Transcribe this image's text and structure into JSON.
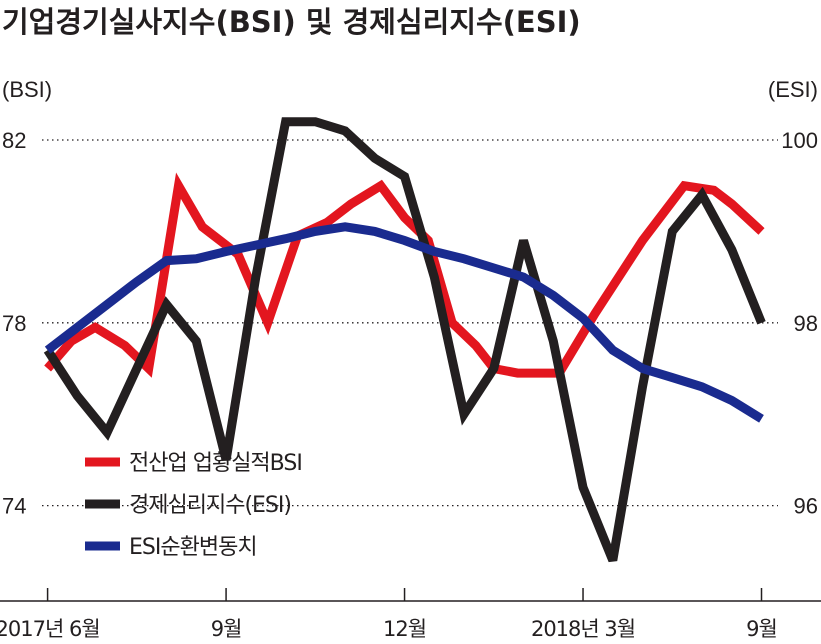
{
  "chart_data": {
    "type": "line",
    "title": "기업경기실사지수(BSI) 및 경제심리지수(ESI)",
    "left_axis": {
      "unit_label": "(BSI)",
      "ticks": [
        82,
        78,
        74
      ],
      "range": [
        72,
        82
      ]
    },
    "right_axis": {
      "unit_label": "(ESI)",
      "ticks": [
        100,
        98,
        96
      ],
      "range": [
        95,
        100
      ]
    },
    "x_tick_labels": [
      "2017년 6월",
      "9월",
      "12월",
      "2018년 3월",
      "9월"
    ],
    "x_tick_positions": [
      6,
      9,
      12,
      15,
      18
    ],
    "x_range": [
      5.2,
      19
    ],
    "grid": "horizontal dotted",
    "legend_placement": "bottom-left",
    "series": [
      {
        "name": "전산업 업황실적BSI",
        "axis": "left",
        "color": "#e3161f",
        "x": [
          6,
          6.4,
          6.8,
          7.3,
          7.7,
          8.2,
          8.6,
          9.2,
          9.7,
          10.2,
          10.7,
          11.1,
          11.6,
          12,
          12.4,
          12.8,
          13.2,
          13.5,
          13.9,
          14.3,
          14.6,
          15.2,
          16,
          16.7,
          17.2,
          17.5,
          18
        ],
        "y": [
          77,
          77.6,
          77.9,
          77.5,
          77,
          81,
          80.1,
          79.5,
          78,
          79.9,
          80.2,
          80.6,
          81,
          80.3,
          79.8,
          78,
          77.5,
          77,
          76.9,
          76.9,
          76.9,
          78.2,
          79.8,
          81,
          80.9,
          80.6,
          80
        ]
      },
      {
        "name": "경제심리지수(ESI)",
        "axis": "right",
        "color": "#231f20",
        "x": [
          6,
          6.5,
          7,
          7.5,
          8,
          8.5,
          9,
          9.5,
          10,
          10.5,
          11,
          11.5,
          12,
          12.5,
          13,
          13.5,
          14,
          14.5,
          15,
          15.5,
          16,
          16.5,
          17,
          17.5,
          18
        ],
        "y": [
          97.7,
          97.2,
          96.8,
          97.5,
          98.2,
          97.8,
          96.5,
          98.5,
          100.2,
          100.2,
          100.1,
          99.8,
          99.6,
          98.5,
          97,
          97.5,
          98.9,
          97.8,
          96.2,
          95.4,
          97.3,
          99,
          99.4,
          98.8,
          98
        ]
      },
      {
        "name": "ESI순환변동치",
        "axis": "right",
        "color": "#1a2b8f",
        "x": [
          6,
          7,
          7.5,
          8,
          8.5,
          9,
          9.5,
          10,
          10.5,
          11,
          11.5,
          12,
          12.5,
          13,
          13.5,
          14,
          14.5,
          15,
          15.5,
          16,
          16.5,
          17,
          17.5,
          18
        ],
        "y": [
          97.7,
          98.2,
          98.45,
          98.68,
          98.7,
          98.78,
          98.85,
          98.92,
          99,
          99.05,
          99,
          98.9,
          98.78,
          98.7,
          98.6,
          98.5,
          98.3,
          98.05,
          97.7,
          97.5,
          97.4,
          97.3,
          97.15,
          96.95
        ]
      }
    ]
  }
}
